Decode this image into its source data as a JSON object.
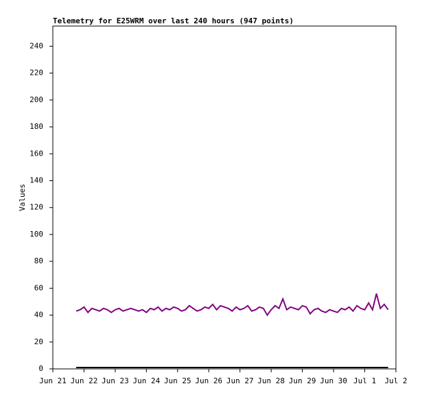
{
  "chart_data": {
    "type": "line",
    "title": "Telemetry for E25WRM over last 240 hours (947 points)",
    "y_label": "Values",
    "x": [
      0.75,
      0.875,
      1,
      1.125,
      1.25,
      1.375,
      1.5,
      1.625,
      1.75,
      1.875,
      2,
      2.125,
      2.25,
      2.375,
      2.5,
      2.625,
      2.75,
      2.875,
      3,
      3.125,
      3.25,
      3.375,
      3.5,
      3.625,
      3.75,
      3.875,
      4,
      4.125,
      4.25,
      4.375,
      4.5,
      4.625,
      4.75,
      4.875,
      5,
      5.125,
      5.25,
      5.375,
      5.5,
      5.625,
      5.75,
      5.875,
      6,
      6.125,
      6.25,
      6.375,
      6.5,
      6.625,
      6.75,
      6.875,
      7,
      7.125,
      7.25,
      7.375,
      7.5,
      7.625,
      7.75,
      7.875,
      8,
      8.125,
      8.25,
      8.375,
      8.5,
      8.625,
      8.75,
      8.875,
      9,
      9.125,
      9.25,
      9.375,
      9.5,
      9.625,
      9.75,
      9.875,
      10,
      10.125,
      10.25,
      10.375,
      10.5,
      10.625,
      10.75
    ],
    "series": [
      {
        "color": "#800080",
        "values": [
          43,
          44,
          46,
          42,
          45,
          44,
          43,
          45,
          44,
          42,
          44,
          45,
          43,
          44,
          45,
          44,
          43,
          44,
          42,
          45,
          44,
          46,
          43,
          45,
          44,
          46,
          45,
          43,
          44,
          47,
          45,
          43,
          44,
          46,
          45,
          48,
          44,
          47,
          46,
          45,
          43,
          46,
          44,
          45,
          47,
          43,
          44,
          46,
          45,
          40,
          44,
          47,
          45,
          52,
          44,
          46,
          45,
          44,
          47,
          46,
          41,
          44,
          45,
          43,
          42,
          44,
          43,
          42,
          45,
          44,
          46,
          43,
          47,
          45,
          44,
          49,
          44,
          56,
          45,
          48,
          44
        ]
      },
      {
        "color": "#000000",
        "values": [
          1,
          1,
          1,
          1,
          1,
          1,
          1,
          1,
          1,
          1,
          1,
          1,
          1,
          1,
          1,
          1,
          1,
          1,
          1,
          1,
          1,
          1,
          1,
          1,
          1,
          1,
          1,
          1,
          1,
          1,
          1,
          1,
          1,
          1,
          1,
          1,
          1,
          1,
          1,
          1,
          1,
          1,
          1,
          1,
          1,
          1,
          1,
          1,
          1,
          1,
          1,
          1,
          1,
          1,
          1,
          1,
          1,
          1,
          1,
          1,
          1,
          1,
          1,
          1,
          1,
          1,
          1,
          1,
          1,
          1,
          1,
          1,
          1,
          1,
          1,
          1,
          1,
          1,
          1,
          1,
          1
        ]
      }
    ],
    "xlim": [
      0,
      11
    ],
    "xticks": [
      {
        "value": 0,
        "label": "Jun 21"
      },
      {
        "value": 1,
        "label": "Jun 22"
      },
      {
        "value": 2,
        "label": "Jun 23"
      },
      {
        "value": 3,
        "label": "Jun 24"
      },
      {
        "value": 4,
        "label": "Jun 25"
      },
      {
        "value": 5,
        "label": "Jun 26"
      },
      {
        "value": 6,
        "label": "Jun 27"
      },
      {
        "value": 7,
        "label": "Jun 28"
      },
      {
        "value": 8,
        "label": "Jun 29"
      },
      {
        "value": 9,
        "label": "Jun 30"
      },
      {
        "value": 10,
        "label": "Jul 1"
      },
      {
        "value": 11,
        "label": "Jul 2"
      }
    ],
    "ylim": [
      0,
      255
    ],
    "yticks": [
      0,
      20,
      40,
      60,
      80,
      100,
      120,
      140,
      160,
      180,
      200,
      220,
      240
    ]
  }
}
